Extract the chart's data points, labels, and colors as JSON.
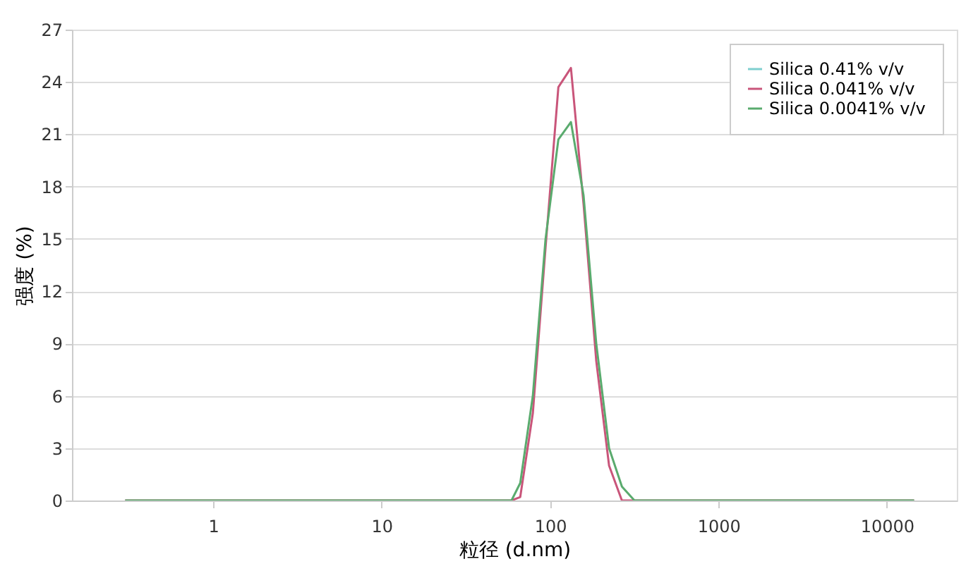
{
  "chart_data": {
    "type": "line",
    "xlabel": "粒径 (d.nm)",
    "ylabel": "强度 (%)",
    "x": [
      0.3,
      59,
      66.5,
      79,
      94,
      112,
      133,
      158,
      188,
      224,
      267,
      317,
      14500
    ],
    "series": [
      {
        "name": "Silica 0.41% v/v",
        "color": "#7ecfcf",
        "values": [
          null,
          null,
          null,
          null,
          null,
          null,
          null,
          null,
          null,
          null,
          null,
          null,
          null
        ]
      },
      {
        "name": "Silica 0.041% v/v",
        "color": "#c9557a",
        "values": [
          0,
          0,
          0.2,
          5,
          14.5,
          23.7,
          24.8,
          17,
          8,
          2,
          0,
          0,
          0
        ]
      },
      {
        "name": "Silica 0.0041% v/v",
        "color": "#5aab6e",
        "values": [
          0,
          0,
          1.0,
          6,
          15,
          20.7,
          21.7,
          17.5,
          9,
          3,
          0.8,
          0,
          0
        ]
      }
    ],
    "log": "x",
    "xlim": [
      0.145,
      26000
    ],
    "xticks": [
      1,
      10,
      100,
      1000,
      10000
    ],
    "ylim": [
      0,
      27
    ],
    "yticks": [
      0,
      3,
      6,
      9,
      12,
      15,
      18,
      21,
      24,
      27
    ],
    "grid": "y",
    "legend": "top right",
    "marker": "none",
    "line_style": "solid"
  }
}
